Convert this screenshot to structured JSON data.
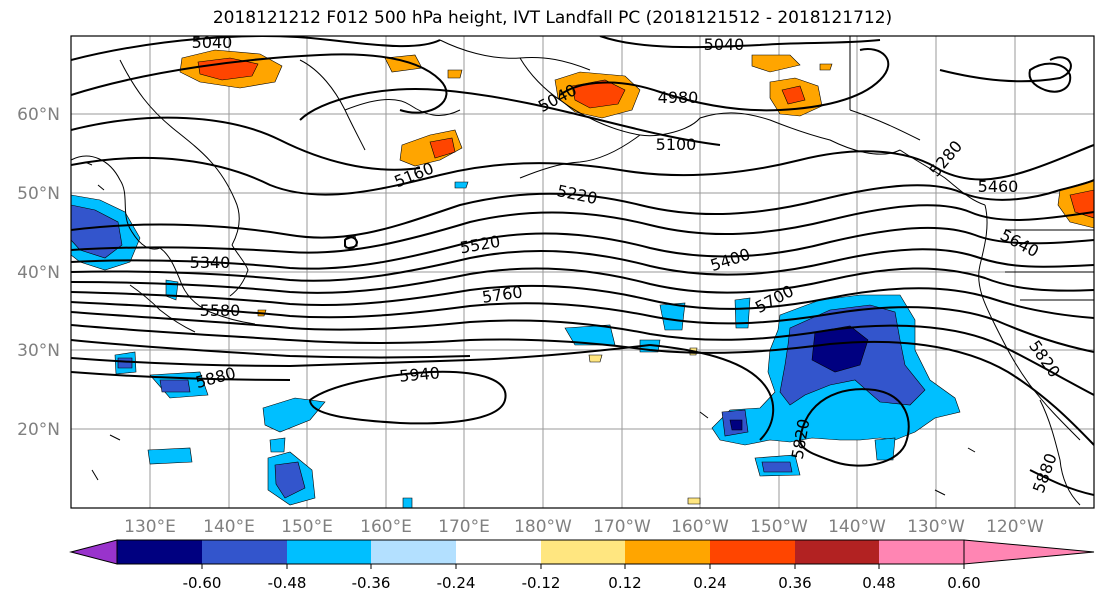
{
  "title": "2018121212 F012 500 hPa height, IVT Landfall PC (2018121512 - 2018121712)",
  "map": {
    "lat_ticks": [
      "20°N",
      "30°N",
      "40°N",
      "50°N",
      "60°N"
    ],
    "lon_ticks": [
      "130°E",
      "140°E",
      "150°E",
      "160°E",
      "170°E",
      "180°W",
      "170°W",
      "160°W",
      "150°W",
      "140°W",
      "130°W",
      "120°W"
    ],
    "contour_labels": [
      "5040",
      "5040",
      "5040",
      "4980",
      "5100",
      "5160",
      "5220",
      "5340",
      "5400",
      "5460",
      "5520",
      "5580",
      "5640",
      "5700",
      "5760",
      "5820",
      "5820",
      "5880",
      "5880",
      "5940",
      "5280"
    ]
  },
  "colorbar": {
    "ticks": [
      "-0.60",
      "-0.48",
      "-0.36",
      "-0.24",
      "-0.12",
      "0.12",
      "0.24",
      "0.36",
      "0.48",
      "0.60"
    ],
    "colors": [
      "#9933cc",
      "#000080",
      "#3355cc",
      "#00bfff",
      "#b3e0ff",
      "#ffffff",
      "#ffe680",
      "#ffa500",
      "#ff4500",
      "#b22222",
      "#ff85b3"
    ]
  }
}
